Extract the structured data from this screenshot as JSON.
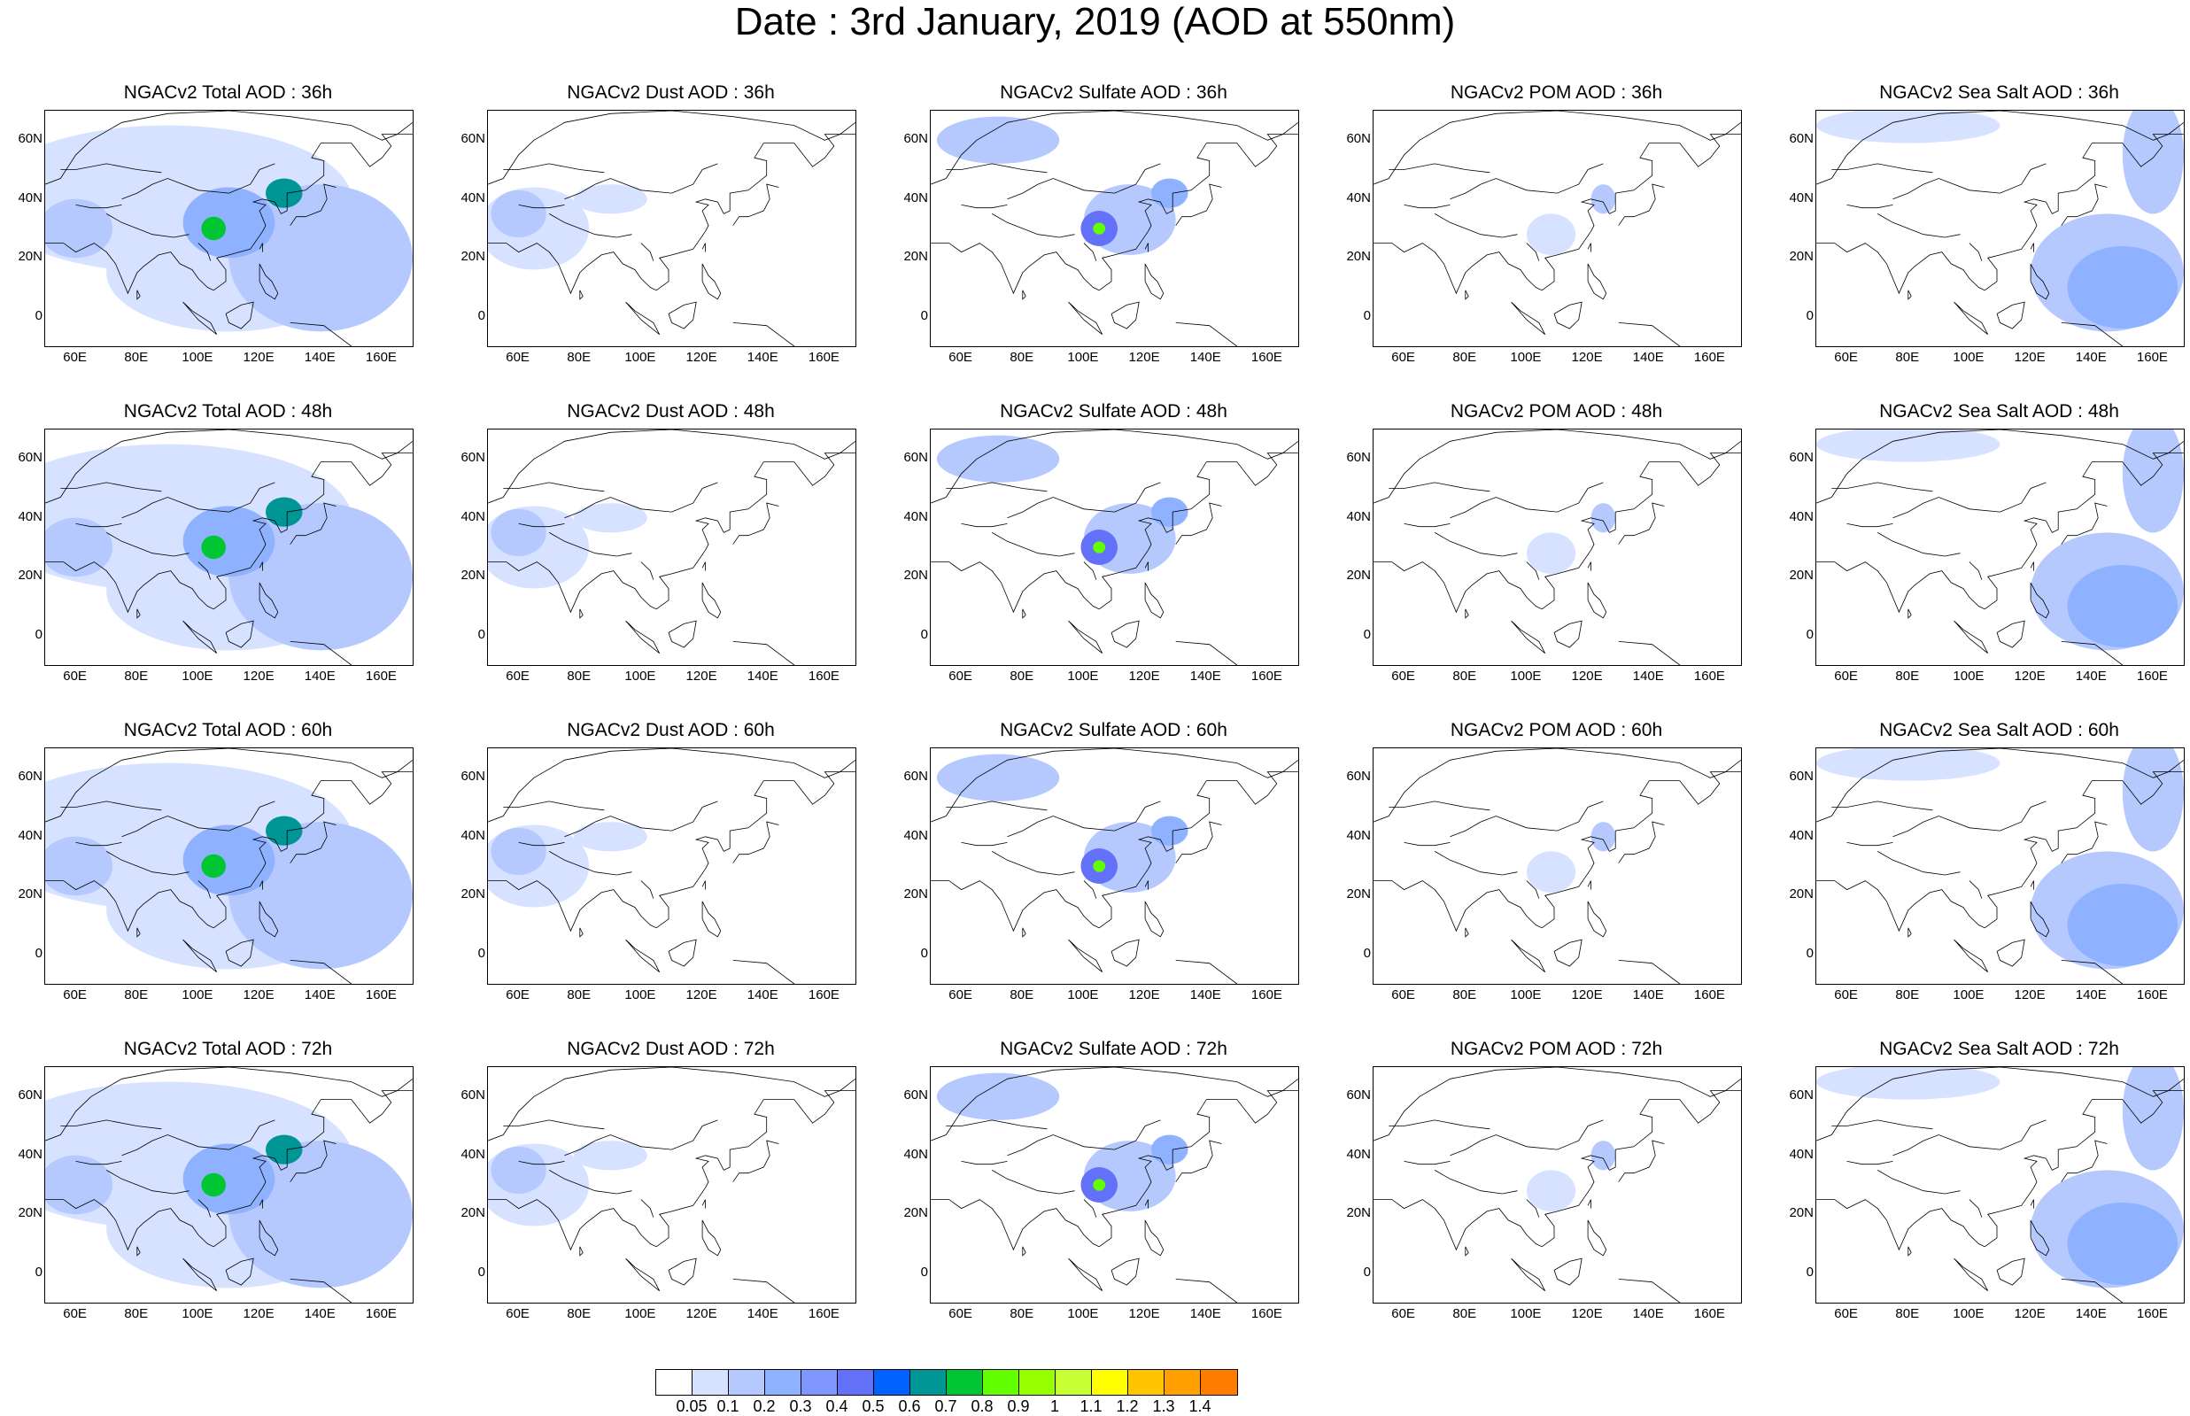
{
  "title": "Date : 3rd January, 2019 (AOD at 550nm)",
  "panels": [
    [
      "NGACv2 Total AOD : 36h",
      "NGACv2 Dust AOD : 36h",
      "NGACv2 Sulfate AOD : 36h",
      "NGACv2 POM AOD : 36h",
      "NGACv2 Sea Salt AOD : 36h"
    ],
    [
      "NGACv2 Total AOD : 48h",
      "NGACv2 Dust AOD : 48h",
      "NGACv2 Sulfate AOD : 48h",
      "NGACv2 POM AOD : 48h",
      "NGACv2 Sea Salt AOD : 48h"
    ],
    [
      "NGACv2 Total AOD : 60h",
      "NGACv2 Dust AOD : 60h",
      "NGACv2 Sulfate AOD : 60h",
      "NGACv2 POM AOD : 60h",
      "NGACv2 Sea Salt AOD : 60h"
    ],
    [
      "NGACv2 Total AOD : 72h",
      "NGACv2 Dust AOD : 72h",
      "NGACv2 Sulfate AOD : 72h",
      "NGACv2 POM AOD : 72h",
      "NGACv2 Sea Salt  AOD : 72h"
    ]
  ],
  "lat_labels": [
    "60N",
    "40N",
    "20N",
    "0"
  ],
  "lon_labels": [
    "60E",
    "80E",
    "100E",
    "120E",
    "140E",
    "160E"
  ],
  "colorbar": {
    "labels": [
      "0.05",
      "0.1",
      "0.2",
      "0.3",
      "0.4",
      "0.5",
      "0.6",
      "0.7",
      "0.8",
      "0.9",
      "1",
      "1.1",
      "1.2",
      "1.3",
      "1.4"
    ],
    "colors": [
      "#ffffff",
      "#d6e2ff",
      "#b5c9ff",
      "#8eb2ff",
      "#7f96ff",
      "#6370f8",
      "#0063ff",
      "#009696",
      "#00c633",
      "#63ff00",
      "#96ff00",
      "#c6ff33",
      "#ffff00",
      "#ffc600",
      "#ffa000",
      "#ff7c00",
      "#ff1900"
    ]
  },
  "map_extent": {
    "lon": [
      50,
      170
    ],
    "lat": [
      -10,
      70
    ]
  }
}
